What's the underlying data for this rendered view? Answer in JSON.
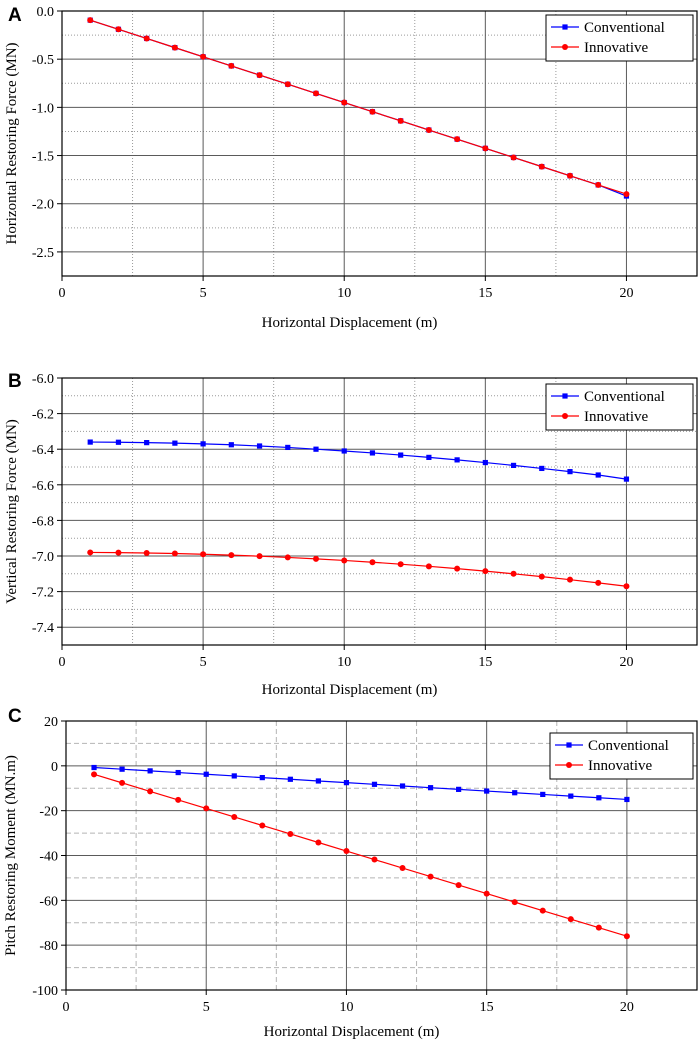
{
  "chart_data": [
    {
      "type": "line",
      "panel": "A",
      "xlabel": "Horizontal Displacement (m)",
      "ylabel": "Horizontal Restoring Force (MN)",
      "xlim": [
        0,
        22.5
      ],
      "ylim": [
        -2.75,
        0.0
      ],
      "xticks": [
        0,
        5,
        10,
        15,
        20
      ],
      "yticks": [
        0.0,
        -0.5,
        -1.0,
        -1.5,
        -2.0,
        -2.5
      ],
      "ytick_labels": [
        "0.0",
        "-0.5",
        "-1.0",
        "-1.5",
        "-2.0",
        "-2.5"
      ],
      "grid_style": "dotted",
      "legend_position": "top-right",
      "x": [
        1,
        2,
        3,
        4,
        5,
        6,
        7,
        8,
        9,
        10,
        11,
        12,
        13,
        14,
        15,
        16,
        17,
        18,
        19,
        20
      ],
      "series": [
        {
          "name": "Conventional",
          "color": "#0000ff",
          "marker": "square",
          "values": [
            -0.095,
            -0.19,
            -0.285,
            -0.38,
            -0.475,
            -0.57,
            -0.665,
            -0.76,
            -0.855,
            -0.95,
            -1.045,
            -1.14,
            -1.235,
            -1.33,
            -1.425,
            -1.52,
            -1.615,
            -1.71,
            -1.805,
            -1.92
          ]
        },
        {
          "name": "Innovative",
          "color": "#ff0000",
          "marker": "circle",
          "values": [
            -0.095,
            -0.19,
            -0.285,
            -0.38,
            -0.475,
            -0.57,
            -0.665,
            -0.76,
            -0.855,
            -0.95,
            -1.045,
            -1.14,
            -1.235,
            -1.33,
            -1.425,
            -1.52,
            -1.615,
            -1.71,
            -1.805,
            -1.9
          ]
        }
      ]
    },
    {
      "type": "line",
      "panel": "B",
      "xlabel": "Horizontal Displacement (m)",
      "ylabel": "Vertical Restoring Force (MN)",
      "xlim": [
        0,
        22.5
      ],
      "ylim": [
        -7.5,
        -6.0
      ],
      "xticks": [
        0,
        5,
        10,
        15,
        20
      ],
      "yticks": [
        -6.0,
        -6.2,
        -6.4,
        -6.6,
        -6.8,
        -7.0,
        -7.2,
        -7.4
      ],
      "ytick_labels": [
        "-6.0",
        "-6.2",
        "-6.4",
        "-6.6",
        "-6.8",
        "-7.0",
        "-7.2",
        "-7.4"
      ],
      "grid_style": "dotted",
      "legend_position": "top-right",
      "x": [
        1,
        2,
        3,
        4,
        5,
        6,
        7,
        8,
        9,
        10,
        11,
        12,
        13,
        14,
        15,
        16,
        17,
        18,
        19,
        20
      ],
      "series": [
        {
          "name": "Conventional",
          "color": "#0000ff",
          "marker": "square",
          "values": [
            -6.36,
            -6.361,
            -6.363,
            -6.366,
            -6.37,
            -6.375,
            -6.382,
            -6.39,
            -6.4,
            -6.41,
            -6.421,
            -6.433,
            -6.446,
            -6.46,
            -6.475,
            -6.491,
            -6.508,
            -6.526,
            -6.545,
            -6.568
          ]
        },
        {
          "name": "Innovative",
          "color": "#ff0000",
          "marker": "circle",
          "values": [
            -6.98,
            -6.981,
            -6.983,
            -6.986,
            -6.99,
            -6.995,
            -7.001,
            -7.008,
            -7.016,
            -7.025,
            -7.035,
            -7.046,
            -7.058,
            -7.071,
            -7.085,
            -7.1,
            -7.116,
            -7.133,
            -7.151,
            -7.17
          ]
        }
      ]
    },
    {
      "type": "line",
      "panel": "C",
      "xlabel": "Horizontal Displacement (m)",
      "ylabel": "Pitch Restoring Moment (MN.m)",
      "xlim": [
        0,
        22.5
      ],
      "ylim": [
        -100,
        20
      ],
      "xticks": [
        0,
        5,
        10,
        15,
        20
      ],
      "yticks": [
        20,
        0,
        -20,
        -40,
        -60,
        -80,
        -100
      ],
      "ytick_labels": [
        "20",
        "0",
        "-20",
        "-40",
        "-60",
        "-80",
        "-100"
      ],
      "grid_style": "dashed",
      "legend_position": "top-right",
      "x": [
        1,
        2,
        3,
        4,
        5,
        6,
        7,
        8,
        9,
        10,
        11,
        12,
        13,
        14,
        15,
        16,
        17,
        18,
        19,
        20
      ],
      "series": [
        {
          "name": "Conventional",
          "color": "#0000ff",
          "marker": "square",
          "values": [
            -0.75,
            -1.5,
            -2.25,
            -3.0,
            -3.75,
            -4.5,
            -5.25,
            -6.0,
            -6.75,
            -7.5,
            -8.25,
            -9.0,
            -9.75,
            -10.5,
            -11.25,
            -12.0,
            -12.75,
            -13.5,
            -14.25,
            -15.0
          ]
        },
        {
          "name": "Innovative",
          "color": "#ff0000",
          "marker": "circle",
          "values": [
            -3.8,
            -7.6,
            -11.4,
            -15.2,
            -19.0,
            -22.8,
            -26.6,
            -30.4,
            -34.2,
            -38.0,
            -41.8,
            -45.6,
            -49.4,
            -53.2,
            -57.0,
            -60.8,
            -64.6,
            -68.4,
            -72.2,
            -76.0
          ]
        }
      ]
    }
  ]
}
